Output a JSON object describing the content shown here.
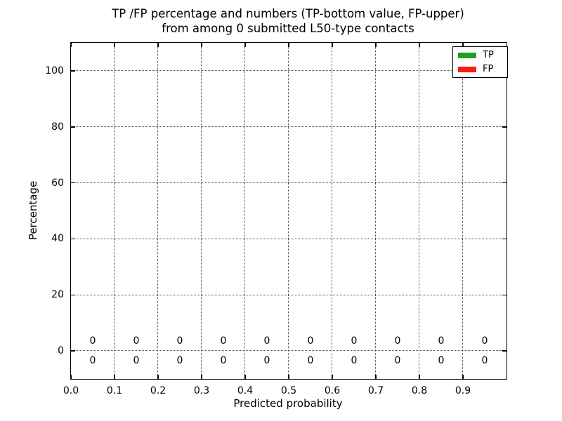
{
  "chart_data": {
    "type": "bar",
    "title_line1": "TP /FP percentage and numbers (TP-bottom value, FP-upper)",
    "title_line2": "from among 0 submitted L50-type contacts",
    "xlabel": "Predicted probability",
    "ylabel": "Percentage",
    "xlim": [
      0.0,
      1.0
    ],
    "ylim": [
      -10,
      110
    ],
    "x_ticks": [
      "0.0",
      "0.1",
      "0.2",
      "0.3",
      "0.4",
      "0.5",
      "0.6",
      "0.7",
      "0.8",
      "0.9"
    ],
    "y_ticks": [
      "0",
      "20",
      "40",
      "60",
      "80",
      "100"
    ],
    "grid": "dotted both axes at major ticks",
    "categories": [
      0.05,
      0.15,
      0.25,
      0.35,
      0.45,
      0.55,
      0.65,
      0.75,
      0.85,
      0.95
    ],
    "series": [
      {
        "name": "TP",
        "color": "#22a022",
        "values": [
          0,
          0,
          0,
          0,
          0,
          0,
          0,
          0,
          0,
          0
        ]
      },
      {
        "name": "FP",
        "color": "#fb1d13",
        "values": [
          0,
          0,
          0,
          0,
          0,
          0,
          0,
          0,
          0,
          0
        ]
      }
    ],
    "annotations": {
      "fp_counts_upper_row": [
        0,
        0,
        0,
        0,
        0,
        0,
        0,
        0,
        0,
        0
      ],
      "tp_counts_lower_row": [
        0,
        0,
        0,
        0,
        0,
        0,
        0,
        0,
        0,
        0
      ]
    },
    "legend": {
      "position": "upper right",
      "entries": [
        {
          "label": "TP",
          "color": "#22a022"
        },
        {
          "label": "FP",
          "color": "#fb1d13"
        }
      ]
    }
  }
}
